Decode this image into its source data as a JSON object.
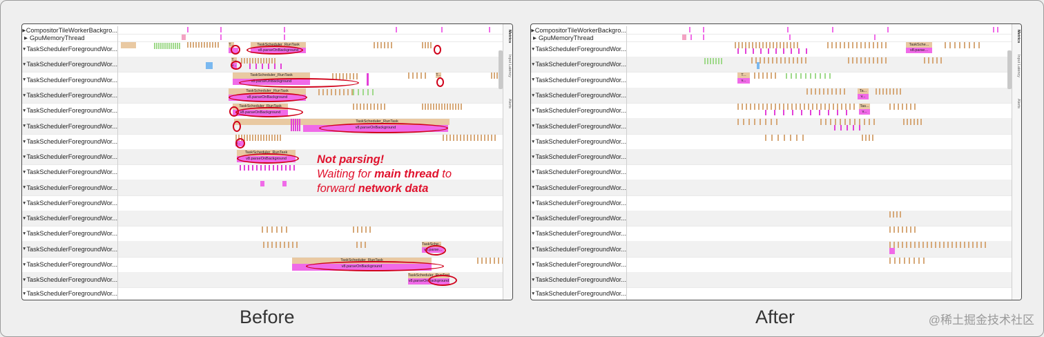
{
  "rows": [
    {
      "label": "CompositorTileWorkerBackgro...",
      "expanded": false
    },
    {
      "label": "GpuMemoryThread",
      "expanded": false
    },
    {
      "label": "TaskSchedulerForegroundWor...",
      "expanded": true
    },
    {
      "label": "TaskSchedulerForegroundWor...",
      "expanded": true
    },
    {
      "label": "TaskSchedulerForegroundWor...",
      "expanded": true
    },
    {
      "label": "TaskSchedulerForegroundWor...",
      "expanded": true
    },
    {
      "label": "TaskSchedulerForegroundWor...",
      "expanded": true
    },
    {
      "label": "TaskSchedulerForegroundWor...",
      "expanded": true
    },
    {
      "label": "TaskSchedulerForegroundWor...",
      "expanded": true
    },
    {
      "label": "TaskSchedulerForegroundWor...",
      "expanded": true
    },
    {
      "label": "TaskSchedulerForegroundWor...",
      "expanded": true
    },
    {
      "label": "TaskSchedulerForegroundWor...",
      "expanded": true
    },
    {
      "label": "TaskSchedulerForegroundWor...",
      "expanded": true
    },
    {
      "label": "TaskSchedulerForegroundWor...",
      "expanded": true
    },
    {
      "label": "TaskSchedulerForegroundWor...",
      "expanded": true
    },
    {
      "label": "TaskSchedulerForegroundWor...",
      "expanded": true
    },
    {
      "label": "TaskSchedulerForegroundWor...",
      "expanded": true
    },
    {
      "label": "TaskSchedulerForegroundWor...",
      "expanded": true
    },
    {
      "label": "TaskSchedulerForegroundWor...",
      "expanded": true
    }
  ],
  "side_tabs": [
    "Metrics",
    "Input Latency",
    "Alerts"
  ],
  "task_label": "TaskScheduler_RunTask",
  "parse_label": "v8.parseOnBackground",
  "short_labels": {
    "t": "T...",
    "v": "v...",
    "tas": "Tas...",
    "ta": "Ta...",
    "tasksche": "TaskSche...",
    "v8parse": "v8.parse..."
  },
  "annotation": {
    "line1": "Not parsing!",
    "line2_pre": "Waiting for ",
    "line2_bold": "main thread",
    "line2_post": " to",
    "line3_pre": "forward ",
    "line3_bold": "network data"
  },
  "captions": {
    "before": "Before",
    "after": "After"
  },
  "watermark": "@稀土掘金技术社区",
  "colors": {
    "task": "#e9c9a2",
    "task_dark": "#d6a878",
    "parse": "#f06ae8",
    "parse_dark": "#e33fd8",
    "green": "#9fd98a",
    "blue": "#7ab8f0",
    "highlight": "#d0021b",
    "note": "#e0122d"
  }
}
